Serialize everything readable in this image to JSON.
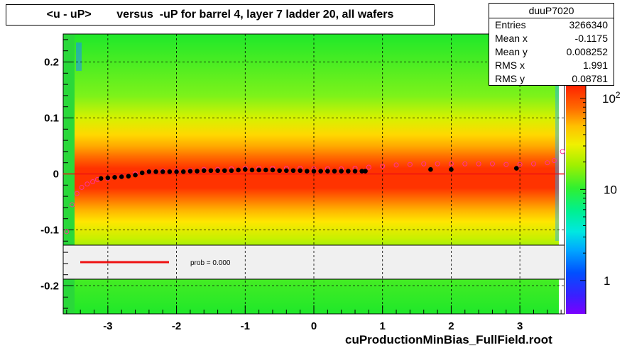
{
  "title": {
    "left": "<u - uP>",
    "right": "versus  -uP for barrel 4, layer 7 ladder 20, all wafers"
  },
  "stats": {
    "name": "duuP7020",
    "rows": [
      {
        "label": "Entries",
        "value": "3266340"
      },
      {
        "label": "Mean x",
        "value": "-0.1175"
      },
      {
        "label": "Mean y",
        "value": "0.008252"
      },
      {
        "label": "RMS x",
        "value": "1.991"
      },
      {
        "label": "RMS y",
        "value": "0.08781"
      }
    ]
  },
  "legend": {
    "prob_text": "prob = 0.000"
  },
  "footer": "cuProductionMinBias_FullField.root",
  "colors": {
    "fit_line": "#ee1111",
    "profile_marker": "#000000",
    "open_marker": "#ff3399",
    "legend_bg": "#f0f0f0"
  },
  "chart_data": {
    "type": "heatmap",
    "xlim": [
      -3.65,
      3.65
    ],
    "ylim": [
      -0.25,
      0.25
    ],
    "x_ticks": [
      -3,
      -2,
      -1,
      0,
      1,
      2,
      3
    ],
    "x_tick_labels": [
      "-3",
      "-2",
      "-1",
      "0",
      "1",
      "2",
      "3"
    ],
    "y_ticks": [
      -0.2,
      -0.1,
      0,
      0.1,
      0.2
    ],
    "y_tick_labels": [
      "-0.2",
      "-0.1",
      "0",
      "0.1",
      "0.2"
    ],
    "grid": true,
    "colorbar": {
      "scale": "log",
      "tick_labels": [
        "1",
        "10",
        "10^2"
      ],
      "tick_values": [
        1,
        10,
        100
      ]
    },
    "profile_points": [
      {
        "x": -3.1,
        "y": -0.008
      },
      {
        "x": -3.0,
        "y": -0.007
      },
      {
        "x": -2.9,
        "y": -0.006
      },
      {
        "x": -2.8,
        "y": -0.005
      },
      {
        "x": -2.7,
        "y": -0.004
      },
      {
        "x": -2.6,
        "y": -0.002
      },
      {
        "x": -2.5,
        "y": 0.002
      },
      {
        "x": -2.4,
        "y": 0.004
      },
      {
        "x": -2.3,
        "y": 0.004
      },
      {
        "x": -2.2,
        "y": 0.004
      },
      {
        "x": -2.1,
        "y": 0.004
      },
      {
        "x": -2.0,
        "y": 0.004
      },
      {
        "x": -1.9,
        "y": 0.004
      },
      {
        "x": -1.8,
        "y": 0.005
      },
      {
        "x": -1.7,
        "y": 0.005
      },
      {
        "x": -1.6,
        "y": 0.006
      },
      {
        "x": -1.5,
        "y": 0.006
      },
      {
        "x": -1.4,
        "y": 0.006
      },
      {
        "x": -1.3,
        "y": 0.006
      },
      {
        "x": -1.2,
        "y": 0.006
      },
      {
        "x": -1.1,
        "y": 0.007
      },
      {
        "x": -1.0,
        "y": 0.008
      },
      {
        "x": -0.9,
        "y": 0.007
      },
      {
        "x": -0.8,
        "y": 0.007
      },
      {
        "x": -0.7,
        "y": 0.007
      },
      {
        "x": -0.6,
        "y": 0.007
      },
      {
        "x": -0.5,
        "y": 0.006
      },
      {
        "x": -0.4,
        "y": 0.006
      },
      {
        "x": -0.3,
        "y": 0.006
      },
      {
        "x": -0.2,
        "y": 0.006
      },
      {
        "x": -0.1,
        "y": 0.005
      },
      {
        "x": 0.0,
        "y": 0.005
      },
      {
        "x": 0.1,
        "y": 0.005
      },
      {
        "x": 0.2,
        "y": 0.005
      },
      {
        "x": 0.3,
        "y": 0.005
      },
      {
        "x": 0.4,
        "y": 0.005
      },
      {
        "x": 0.5,
        "y": 0.005
      },
      {
        "x": 0.6,
        "y": 0.005
      },
      {
        "x": 0.7,
        "y": 0.005
      },
      {
        "x": 0.75,
        "y": 0.005
      },
      {
        "x": 1.7,
        "y": 0.008
      },
      {
        "x": 2.0,
        "y": 0.008
      },
      {
        "x": 2.95,
        "y": 0.01
      }
    ],
    "open_points": [
      {
        "x": -3.6,
        "y": -0.103
      },
      {
        "x": -3.52,
        "y": -0.055
      },
      {
        "x": -3.45,
        "y": -0.035
      },
      {
        "x": -3.38,
        "y": -0.024
      },
      {
        "x": -3.3,
        "y": -0.018
      },
      {
        "x": -3.22,
        "y": -0.014
      },
      {
        "x": -3.15,
        "y": -0.01
      },
      {
        "x": -3.0,
        "y": -0.008
      },
      {
        "x": -2.8,
        "y": -0.005
      },
      {
        "x": -2.6,
        "y": 0.0
      },
      {
        "x": -2.4,
        "y": 0.004
      },
      {
        "x": -2.2,
        "y": 0.005
      },
      {
        "x": -2.0,
        "y": 0.005
      },
      {
        "x": -1.8,
        "y": 0.006
      },
      {
        "x": -1.6,
        "y": 0.008
      },
      {
        "x": -1.4,
        "y": 0.008
      },
      {
        "x": -1.2,
        "y": 0.009
      },
      {
        "x": -1.0,
        "y": 0.01
      },
      {
        "x": -0.8,
        "y": 0.01
      },
      {
        "x": -0.6,
        "y": 0.01
      },
      {
        "x": -0.4,
        "y": 0.01
      },
      {
        "x": -0.2,
        "y": 0.01
      },
      {
        "x": 0.0,
        "y": 0.009
      },
      {
        "x": 0.2,
        "y": 0.009
      },
      {
        "x": 0.4,
        "y": 0.009
      },
      {
        "x": 0.6,
        "y": 0.01
      },
      {
        "x": 0.8,
        "y": 0.012
      },
      {
        "x": 1.0,
        "y": 0.014
      },
      {
        "x": 1.2,
        "y": 0.016
      },
      {
        "x": 1.4,
        "y": 0.017
      },
      {
        "x": 1.6,
        "y": 0.018
      },
      {
        "x": 1.8,
        "y": 0.018
      },
      {
        "x": 2.0,
        "y": 0.018
      },
      {
        "x": 2.2,
        "y": 0.018
      },
      {
        "x": 2.4,
        "y": 0.018
      },
      {
        "x": 2.6,
        "y": 0.018
      },
      {
        "x": 2.8,
        "y": 0.017
      },
      {
        "x": 3.0,
        "y": 0.017
      },
      {
        "x": 3.2,
        "y": 0.018
      },
      {
        "x": 3.4,
        "y": 0.02
      },
      {
        "x": 3.5,
        "y": 0.024
      },
      {
        "x": 3.62,
        "y": 0.04
      }
    ],
    "fit_line": {
      "x": [
        -3.65,
        3.65
      ],
      "y": [
        0.0,
        0.0
      ]
    }
  }
}
